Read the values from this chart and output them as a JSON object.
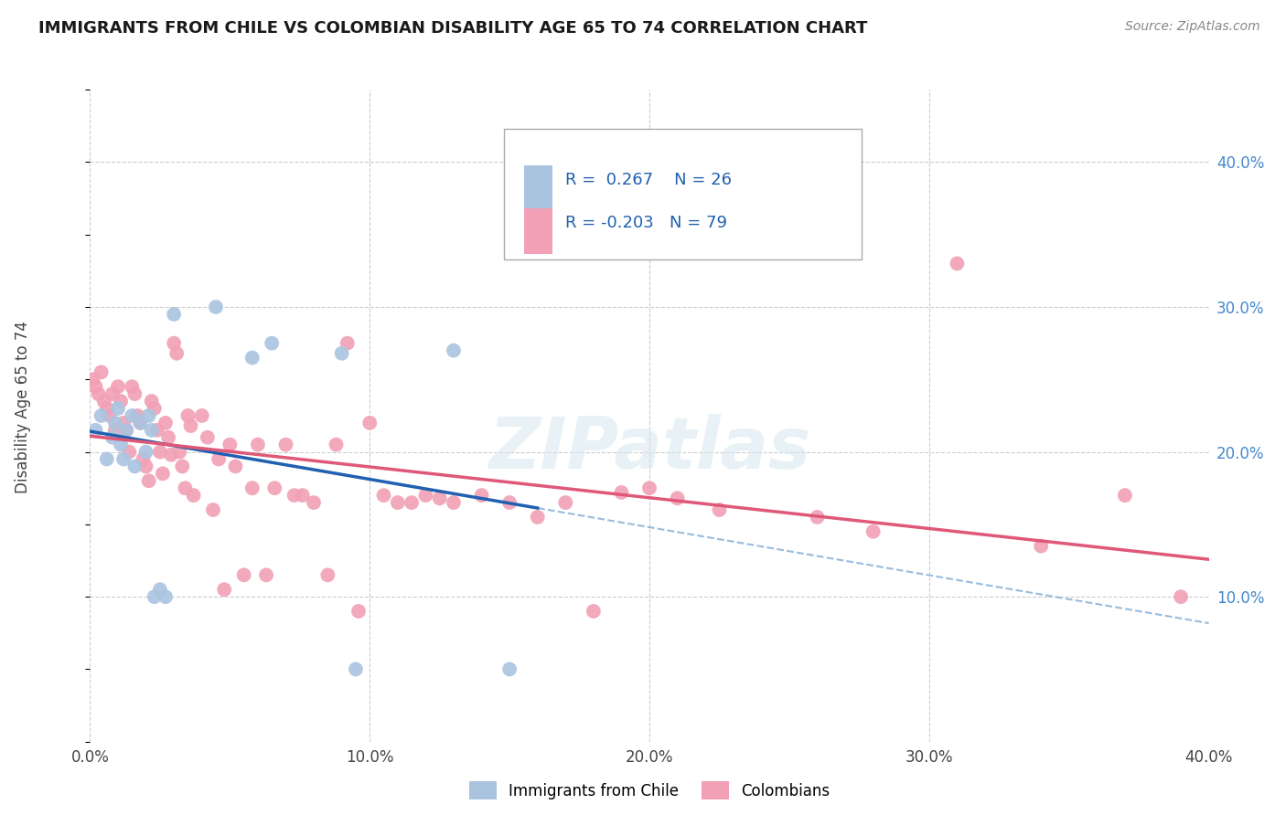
{
  "title": "IMMIGRANTS FROM CHILE VS COLOMBIAN DISABILITY AGE 65 TO 74 CORRELATION CHART",
  "source": "Source: ZipAtlas.com",
  "ylabel": "Disability Age 65 to 74",
  "xlim": [
    0.0,
    0.4
  ],
  "ylim": [
    0.0,
    0.45
  ],
  "x_ticks": [
    0.0,
    0.1,
    0.2,
    0.3,
    0.4
  ],
  "y_ticks_right": [
    0.1,
    0.2,
    0.3,
    0.4
  ],
  "x_tick_labels": [
    "0.0%",
    "10.0%",
    "20.0%",
    "30.0%",
    "40.0%"
  ],
  "y_tick_labels_right": [
    "10.0%",
    "20.0%",
    "30.0%",
    "40.0%"
  ],
  "legend_labels": [
    "Immigrants from Chile",
    "Colombians"
  ],
  "chile_color": "#aac4e0",
  "colombia_color": "#f2a0b5",
  "chile_line_color": "#2060b0",
  "colombia_line_color": "#e05878",
  "chile_R": 0.267,
  "chile_N": 26,
  "colombia_R": -0.203,
  "colombia_N": 79,
  "chile_scatter_x": [
    0.002,
    0.004,
    0.006,
    0.008,
    0.009,
    0.01,
    0.011,
    0.012,
    0.013,
    0.015,
    0.016,
    0.018,
    0.02,
    0.021,
    0.022,
    0.023,
    0.025,
    0.027,
    0.03,
    0.045,
    0.058,
    0.065,
    0.09,
    0.095,
    0.13,
    0.15
  ],
  "chile_scatter_y": [
    0.215,
    0.225,
    0.195,
    0.21,
    0.22,
    0.23,
    0.205,
    0.195,
    0.215,
    0.225,
    0.19,
    0.22,
    0.2,
    0.225,
    0.215,
    0.1,
    0.105,
    0.1,
    0.295,
    0.3,
    0.265,
    0.275,
    0.268,
    0.05,
    0.27,
    0.05
  ],
  "colombia_scatter_x": [
    0.001,
    0.002,
    0.003,
    0.004,
    0.005,
    0.006,
    0.007,
    0.008,
    0.009,
    0.01,
    0.011,
    0.012,
    0.013,
    0.014,
    0.015,
    0.016,
    0.017,
    0.018,
    0.019,
    0.02,
    0.021,
    0.022,
    0.023,
    0.024,
    0.025,
    0.026,
    0.027,
    0.028,
    0.029,
    0.03,
    0.031,
    0.032,
    0.033,
    0.034,
    0.035,
    0.036,
    0.037,
    0.04,
    0.042,
    0.044,
    0.046,
    0.048,
    0.05,
    0.052,
    0.055,
    0.058,
    0.06,
    0.063,
    0.066,
    0.07,
    0.073,
    0.076,
    0.08,
    0.085,
    0.088,
    0.092,
    0.096,
    0.1,
    0.105,
    0.11,
    0.115,
    0.12,
    0.125,
    0.13,
    0.14,
    0.15,
    0.16,
    0.17,
    0.18,
    0.19,
    0.2,
    0.21,
    0.225,
    0.26,
    0.28,
    0.31,
    0.34,
    0.37,
    0.39
  ],
  "colombia_scatter_y": [
    0.25,
    0.245,
    0.24,
    0.255,
    0.235,
    0.23,
    0.225,
    0.24,
    0.215,
    0.245,
    0.235,
    0.22,
    0.215,
    0.2,
    0.245,
    0.24,
    0.225,
    0.22,
    0.195,
    0.19,
    0.18,
    0.235,
    0.23,
    0.215,
    0.2,
    0.185,
    0.22,
    0.21,
    0.198,
    0.275,
    0.268,
    0.2,
    0.19,
    0.175,
    0.225,
    0.218,
    0.17,
    0.225,
    0.21,
    0.16,
    0.195,
    0.105,
    0.205,
    0.19,
    0.115,
    0.175,
    0.205,
    0.115,
    0.175,
    0.205,
    0.17,
    0.17,
    0.165,
    0.115,
    0.205,
    0.275,
    0.09,
    0.22,
    0.17,
    0.165,
    0.165,
    0.17,
    0.168,
    0.165,
    0.17,
    0.165,
    0.155,
    0.165,
    0.09,
    0.172,
    0.175,
    0.168,
    0.16,
    0.155,
    0.145,
    0.33,
    0.135,
    0.17,
    0.1
  ],
  "watermark": "ZIPatlas",
  "background_color": "#ffffff",
  "grid_color": "#cccccc"
}
